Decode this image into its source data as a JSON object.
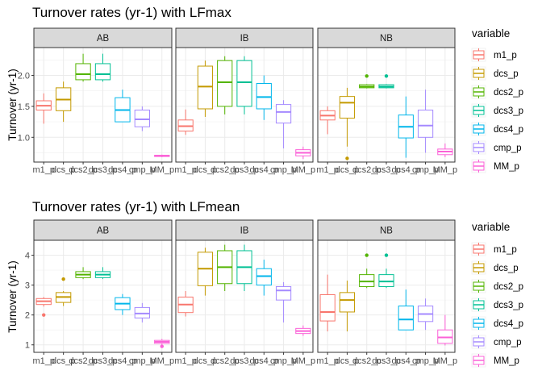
{
  "chart_data": [
    {
      "type": "boxplot",
      "title": "Turnover rates (yr-1) with LFmax",
      "ylabel": "Turnover (yr-1)",
      "ylim": [
        0.6,
        2.45
      ],
      "yticks": [
        1.0,
        1.5,
        2.0
      ],
      "ytick_labels": [
        "1.0",
        "1.5",
        "2.0"
      ],
      "categories": [
        "m1_p",
        "dcs_p",
        "dcs2_p",
        "dcs3_p",
        "dcs4_p",
        "cmp_p",
        "MM_p"
      ],
      "legend_title": "variable",
      "legend_labels": [
        "m1_p",
        "dcs_p",
        "dcs2_p",
        "dcs3_p",
        "dcs4_p",
        "cmp_p",
        "MM_p"
      ],
      "colors": [
        "#F8766D",
        "#C49A00",
        "#53B400",
        "#00C094",
        "#00B6EB",
        "#A58AFF",
        "#FB61D7"
      ],
      "legend_position": "right",
      "grid": true,
      "facets": [
        {
          "name": "AB",
          "boxes": [
            {
              "min": 1.22,
              "q1": 1.44,
              "median": 1.51,
              "q3": 1.59,
              "max": 1.71,
              "outliers": []
            },
            {
              "min": 1.25,
              "q1": 1.43,
              "median": 1.61,
              "q3": 1.8,
              "max": 1.9,
              "outliers": []
            },
            {
              "min": 1.9,
              "q1": 1.93,
              "median": 2.02,
              "q3": 2.19,
              "max": 2.35,
              "outliers": []
            },
            {
              "min": 1.9,
              "q1": 1.93,
              "median": 2.02,
              "q3": 2.19,
              "max": 2.35,
              "outliers": []
            },
            {
              "min": 1.25,
              "q1": 1.25,
              "median": 1.44,
              "q3": 1.64,
              "max": 1.77,
              "outliers": []
            },
            {
              "min": 1.1,
              "q1": 1.17,
              "median": 1.29,
              "q3": 1.44,
              "max": 1.5,
              "outliers": []
            },
            {
              "min": 0.68,
              "q1": 0.69,
              "median": 0.7,
              "q3": 0.71,
              "max": 0.72,
              "outliers": []
            }
          ]
        },
        {
          "name": "IB",
          "boxes": [
            {
              "min": 1.04,
              "q1": 1.1,
              "median": 1.18,
              "q3": 1.28,
              "max": 1.45,
              "outliers": []
            },
            {
              "min": 1.33,
              "q1": 1.46,
              "median": 1.82,
              "q3": 2.15,
              "max": 2.24,
              "outliers": []
            },
            {
              "min": 1.37,
              "q1": 1.5,
              "median": 1.89,
              "q3": 2.24,
              "max": 2.31,
              "outliers": []
            },
            {
              "min": 1.37,
              "q1": 1.5,
              "median": 1.89,
              "q3": 2.24,
              "max": 2.31,
              "outliers": []
            },
            {
              "min": 1.28,
              "q1": 1.46,
              "median": 1.65,
              "q3": 1.87,
              "max": 2.0,
              "outliers": []
            },
            {
              "min": 0.82,
              "q1": 1.23,
              "median": 1.41,
              "q3": 1.53,
              "max": 1.6,
              "outliers": []
            },
            {
              "min": 0.65,
              "q1": 0.7,
              "median": 0.75,
              "q3": 0.8,
              "max": 0.85,
              "outliers": []
            }
          ]
        },
        {
          "name": "NB",
          "boxes": [
            {
              "min": 1.05,
              "q1": 1.28,
              "median": 1.35,
              "q3": 1.43,
              "max": 1.5,
              "outliers": []
            },
            {
              "min": 0.85,
              "q1": 1.31,
              "median": 1.56,
              "q3": 1.66,
              "max": 1.8,
              "outliers": [
                0.66
              ]
            },
            {
              "min": 1.79,
              "q1": 1.8,
              "median": 1.82,
              "q3": 1.85,
              "max": 1.86,
              "outliers": [
                1.99
              ]
            },
            {
              "min": 1.79,
              "q1": 1.8,
              "median": 1.82,
              "q3": 1.85,
              "max": 1.86,
              "outliers": [
                1.99
              ]
            },
            {
              "min": 0.67,
              "q1": 0.99,
              "median": 1.17,
              "q3": 1.36,
              "max": 1.66,
              "outliers": []
            },
            {
              "min": 0.75,
              "q1": 1.0,
              "median": 1.19,
              "q3": 1.44,
              "max": 1.77,
              "outliers": []
            },
            {
              "min": 0.68,
              "q1": 0.72,
              "median": 0.77,
              "q3": 0.81,
              "max": 0.9,
              "outliers": []
            }
          ]
        }
      ]
    },
    {
      "type": "boxplot",
      "title": "Turnover rates (yr-1) with LFmean",
      "ylabel": "Turnover (yr-1)",
      "ylim": [
        0.75,
        4.5
      ],
      "yticks": [
        1,
        2,
        3,
        4
      ],
      "ytick_labels": [
        "1",
        "2",
        "3",
        "4"
      ],
      "categories": [
        "m1_p",
        "dcs_p",
        "dcs2_p",
        "dcs3_p",
        "dcs4_p",
        "cmp_p",
        "MM_p"
      ],
      "legend_title": "variable",
      "legend_labels": [
        "m1_p",
        "dcs_p",
        "dcs2_p",
        "dcs3_p",
        "dcs4_p",
        "cmp_p",
        "MM_p"
      ],
      "colors": [
        "#F8766D",
        "#C49A00",
        "#53B400",
        "#00C094",
        "#00B6EB",
        "#A58AFF",
        "#FB61D7"
      ],
      "legend_position": "right",
      "grid": true,
      "facets": [
        {
          "name": "AB",
          "boxes": [
            {
              "min": 2.28,
              "q1": 2.35,
              "median": 2.46,
              "q3": 2.55,
              "max": 2.6,
              "outliers": [
                2.0
              ]
            },
            {
              "min": 2.3,
              "q1": 2.42,
              "median": 2.6,
              "q3": 2.75,
              "max": 2.8,
              "outliers": [
                3.2
              ]
            },
            {
              "min": 3.2,
              "q1": 3.25,
              "median": 3.35,
              "q3": 3.45,
              "max": 3.6,
              "outliers": []
            },
            {
              "min": 3.2,
              "q1": 3.25,
              "median": 3.35,
              "q3": 3.45,
              "max": 3.6,
              "outliers": []
            },
            {
              "min": 2.0,
              "q1": 2.18,
              "median": 2.38,
              "q3": 2.58,
              "max": 2.7,
              "outliers": []
            },
            {
              "min": 1.75,
              "q1": 1.9,
              "median": 2.05,
              "q3": 2.25,
              "max": 2.4,
              "outliers": []
            },
            {
              "min": 1.0,
              "q1": 1.05,
              "median": 1.1,
              "q3": 1.15,
              "max": 1.2,
              "outliers": [
                0.95
              ]
            }
          ]
        },
        {
          "name": "IB",
          "boxes": [
            {
              "min": 1.95,
              "q1": 2.08,
              "median": 2.35,
              "q3": 2.6,
              "max": 2.8,
              "outliers": []
            },
            {
              "min": 2.65,
              "q1": 2.98,
              "median": 3.55,
              "q3": 4.1,
              "max": 4.25,
              "outliers": []
            },
            {
              "min": 2.8,
              "q1": 3.05,
              "median": 3.6,
              "q3": 4.15,
              "max": 4.35,
              "outliers": []
            },
            {
              "min": 2.8,
              "q1": 3.05,
              "median": 3.6,
              "q3": 4.15,
              "max": 4.35,
              "outliers": []
            },
            {
              "min": 2.65,
              "q1": 3.0,
              "median": 3.3,
              "q3": 3.55,
              "max": 3.85,
              "outliers": []
            },
            {
              "min": 1.75,
              "q1": 2.5,
              "median": 2.82,
              "q3": 2.95,
              "max": 3.1,
              "outliers": []
            },
            {
              "min": 1.3,
              "q1": 1.38,
              "median": 1.46,
              "q3": 1.55,
              "max": 1.65,
              "outliers": []
            }
          ]
        },
        {
          "name": "NB",
          "boxes": [
            {
              "min": 1.45,
              "q1": 1.8,
              "median": 2.1,
              "q3": 2.68,
              "max": 3.35,
              "outliers": []
            },
            {
              "min": 1.45,
              "q1": 2.1,
              "median": 2.5,
              "q3": 2.75,
              "max": 3.15,
              "outliers": []
            },
            {
              "min": 2.9,
              "q1": 2.95,
              "median": 3.12,
              "q3": 3.35,
              "max": 3.55,
              "outliers": [
                4.0
              ]
            },
            {
              "min": 2.9,
              "q1": 2.95,
              "median": 3.12,
              "q3": 3.35,
              "max": 3.55,
              "outliers": [
                4.0
              ]
            },
            {
              "min": 1.5,
              "q1": 1.5,
              "median": 1.85,
              "q3": 2.3,
              "max": 2.85,
              "outliers": []
            },
            {
              "min": 1.5,
              "q1": 1.78,
              "median": 2.03,
              "q3": 2.3,
              "max": 2.55,
              "outliers": []
            },
            {
              "min": 0.98,
              "q1": 1.05,
              "median": 1.25,
              "q3": 1.5,
              "max": 2.0,
              "outliers": []
            }
          ]
        }
      ]
    }
  ]
}
